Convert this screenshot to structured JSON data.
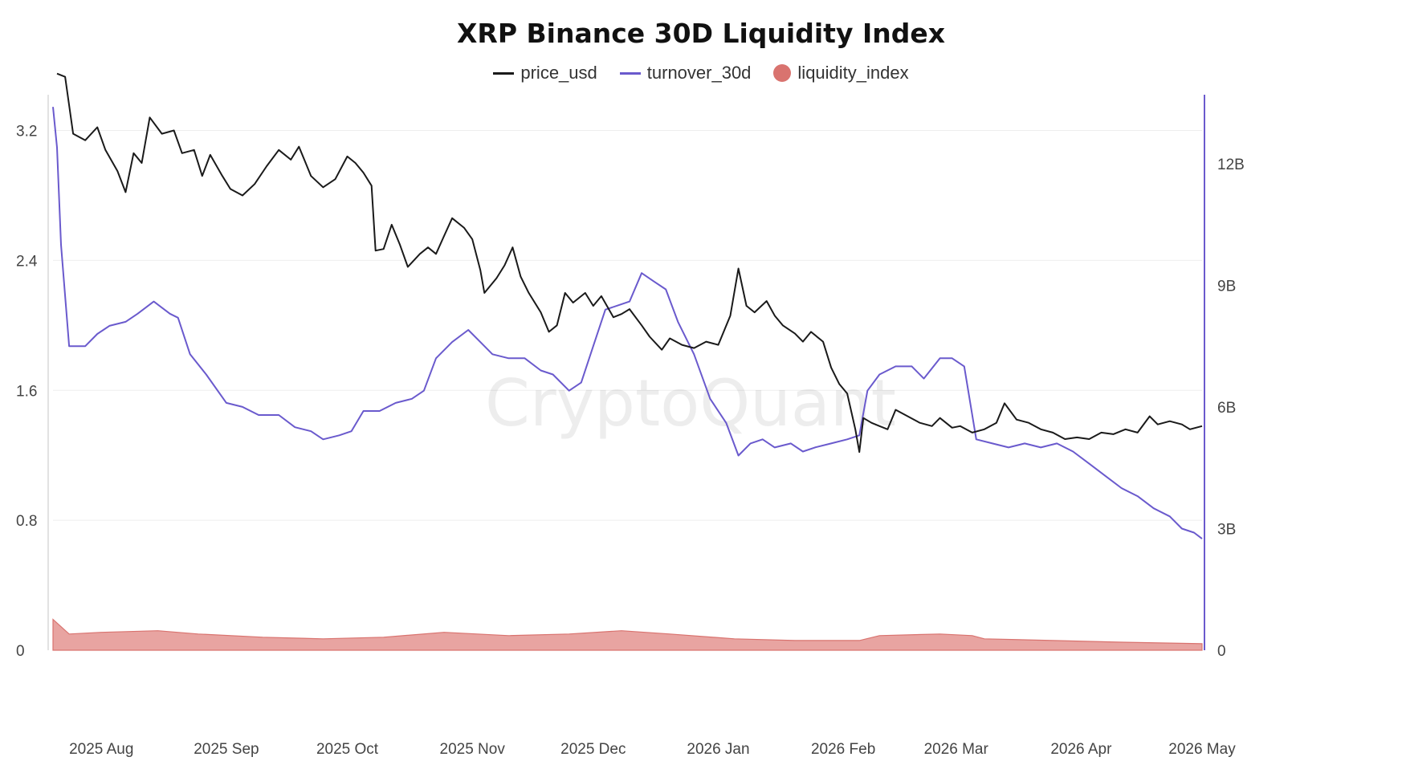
{
  "chart_data": {
    "type": "line",
    "title": "XRP Binance 30D Liquidity Index",
    "watermark": "CryptoQuant",
    "legend_position": "top-center",
    "grid": true,
    "x": {
      "start": "2025-07-20",
      "end": "2026-05-01",
      "tick_labels": [
        "2025 Aug",
        "2025 Sep",
        "2025 Oct",
        "2025 Nov",
        "2025 Dec",
        "2026 Jan",
        "2026 Feb",
        "2026 Mar",
        "2026 Apr",
        "2026 May"
      ],
      "tick_dates": [
        "2025-08-01",
        "2025-09-01",
        "2025-10-01",
        "2025-11-01",
        "2025-12-01",
        "2026-01-01",
        "2026-02-01",
        "2026-03-01",
        "2026-04-01",
        "2026-05-01"
      ]
    },
    "y_left": {
      "min": 0,
      "max": 3.42,
      "ticks": [
        0,
        0.8,
        1.6,
        2.4,
        3.2
      ],
      "tick_labels": [
        "0",
        "0.8",
        "1.6",
        "2.4",
        "3.2"
      ]
    },
    "y_right": {
      "min": 0,
      "max": 13700000000,
      "ticks": [
        0,
        3000000000,
        6000000000,
        9000000000,
        12000000000
      ],
      "tick_labels": [
        "0",
        "3B",
        "6B",
        "9B",
        "12B"
      ]
    },
    "series": [
      {
        "name": "price_usd",
        "axis": "left",
        "color": "#1a1a1a",
        "points": [
          [
            "2025-07-21",
            3.55
          ],
          [
            "2025-07-23",
            3.53
          ],
          [
            "2025-07-25",
            3.18
          ],
          [
            "2025-07-28",
            3.14
          ],
          [
            "2025-07-31",
            3.22
          ],
          [
            "2025-08-02",
            3.08
          ],
          [
            "2025-08-05",
            2.95
          ],
          [
            "2025-08-07",
            2.82
          ],
          [
            "2025-08-09",
            3.06
          ],
          [
            "2025-08-11",
            3.0
          ],
          [
            "2025-08-13",
            3.28
          ],
          [
            "2025-08-16",
            3.18
          ],
          [
            "2025-08-19",
            3.2
          ],
          [
            "2025-08-21",
            3.06
          ],
          [
            "2025-08-24",
            3.08
          ],
          [
            "2025-08-26",
            2.92
          ],
          [
            "2025-08-28",
            3.05
          ],
          [
            "2025-08-31",
            2.92
          ],
          [
            "2025-09-02",
            2.84
          ],
          [
            "2025-09-05",
            2.8
          ],
          [
            "2025-09-08",
            2.87
          ],
          [
            "2025-09-11",
            2.98
          ],
          [
            "2025-09-14",
            3.08
          ],
          [
            "2025-09-17",
            3.02
          ],
          [
            "2025-09-19",
            3.1
          ],
          [
            "2025-09-22",
            2.92
          ],
          [
            "2025-09-25",
            2.85
          ],
          [
            "2025-09-28",
            2.9
          ],
          [
            "2025-10-01",
            3.04
          ],
          [
            "2025-10-03",
            3.0
          ],
          [
            "2025-10-05",
            2.94
          ],
          [
            "2025-10-07",
            2.86
          ],
          [
            "2025-10-08",
            2.46
          ],
          [
            "2025-10-10",
            2.47
          ],
          [
            "2025-10-12",
            2.62
          ],
          [
            "2025-10-14",
            2.5
          ],
          [
            "2025-10-16",
            2.36
          ],
          [
            "2025-10-19",
            2.44
          ],
          [
            "2025-10-21",
            2.48
          ],
          [
            "2025-10-23",
            2.44
          ],
          [
            "2025-10-25",
            2.55
          ],
          [
            "2025-10-27",
            2.66
          ],
          [
            "2025-10-30",
            2.6
          ],
          [
            "2025-11-01",
            2.53
          ],
          [
            "2025-11-03",
            2.34
          ],
          [
            "2025-11-04",
            2.2
          ],
          [
            "2025-11-07",
            2.29
          ],
          [
            "2025-11-09",
            2.37
          ],
          [
            "2025-11-11",
            2.48
          ],
          [
            "2025-11-13",
            2.3
          ],
          [
            "2025-11-15",
            2.2
          ],
          [
            "2025-11-18",
            2.08
          ],
          [
            "2025-11-20",
            1.96
          ],
          [
            "2025-11-22",
            2.0
          ],
          [
            "2025-11-24",
            2.2
          ],
          [
            "2025-11-26",
            2.14
          ],
          [
            "2025-11-29",
            2.2
          ],
          [
            "2025-12-01",
            2.12
          ],
          [
            "2025-12-03",
            2.18
          ],
          [
            "2025-12-06",
            2.05
          ],
          [
            "2025-12-08",
            2.07
          ],
          [
            "2025-12-10",
            2.1
          ],
          [
            "2025-12-13",
            2.0
          ],
          [
            "2025-12-15",
            1.93
          ],
          [
            "2025-12-18",
            1.85
          ],
          [
            "2025-12-20",
            1.92
          ],
          [
            "2025-12-23",
            1.88
          ],
          [
            "2025-12-26",
            1.86
          ],
          [
            "2025-12-29",
            1.9
          ],
          [
            "2026-01-01",
            1.88
          ],
          [
            "2026-01-04",
            2.06
          ],
          [
            "2026-01-06",
            2.35
          ],
          [
            "2026-01-08",
            2.12
          ],
          [
            "2026-01-10",
            2.08
          ],
          [
            "2026-01-13",
            2.15
          ],
          [
            "2026-01-15",
            2.06
          ],
          [
            "2026-01-17",
            2.0
          ],
          [
            "2026-01-20",
            1.95
          ],
          [
            "2026-01-22",
            1.9
          ],
          [
            "2026-01-24",
            1.96
          ],
          [
            "2026-01-27",
            1.9
          ],
          [
            "2026-01-29",
            1.74
          ],
          [
            "2026-01-31",
            1.64
          ],
          [
            "2026-02-02",
            1.58
          ],
          [
            "2026-02-04",
            1.36
          ],
          [
            "2026-02-05",
            1.22
          ],
          [
            "2026-02-06",
            1.43
          ],
          [
            "2026-02-08",
            1.4
          ],
          [
            "2026-02-10",
            1.38
          ],
          [
            "2026-02-12",
            1.36
          ],
          [
            "2026-02-14",
            1.48
          ],
          [
            "2026-02-17",
            1.44
          ],
          [
            "2026-02-20",
            1.4
          ],
          [
            "2026-02-23",
            1.38
          ],
          [
            "2026-02-25",
            1.43
          ],
          [
            "2026-02-28",
            1.37
          ],
          [
            "2026-03-02",
            1.38
          ],
          [
            "2026-03-05",
            1.34
          ],
          [
            "2026-03-08",
            1.36
          ],
          [
            "2026-03-11",
            1.4
          ],
          [
            "2026-03-13",
            1.52
          ],
          [
            "2026-03-16",
            1.42
          ],
          [
            "2026-03-19",
            1.4
          ],
          [
            "2026-03-22",
            1.36
          ],
          [
            "2026-03-25",
            1.34
          ],
          [
            "2026-03-28",
            1.3
          ],
          [
            "2026-03-31",
            1.31
          ],
          [
            "2026-04-03",
            1.3
          ],
          [
            "2026-04-06",
            1.34
          ],
          [
            "2026-04-09",
            1.33
          ],
          [
            "2026-04-12",
            1.36
          ],
          [
            "2026-04-15",
            1.34
          ],
          [
            "2026-04-18",
            1.44
          ],
          [
            "2026-04-20",
            1.39
          ],
          [
            "2026-04-23",
            1.41
          ],
          [
            "2026-04-26",
            1.39
          ],
          [
            "2026-04-28",
            1.36
          ],
          [
            "2026-05-01",
            1.38
          ]
        ]
      },
      {
        "name": "turnover_30d",
        "axis": "right",
        "color": "#6a5acd",
        "points": [
          [
            "2025-07-20",
            13400000000.0
          ],
          [
            "2025-07-21",
            12400000000.0
          ],
          [
            "2025-07-22",
            10000000000.0
          ],
          [
            "2025-07-24",
            7500000000.0
          ],
          [
            "2025-07-28",
            7500000000.0
          ],
          [
            "2025-07-31",
            7800000000.0
          ],
          [
            "2025-08-03",
            8000000000.0
          ],
          [
            "2025-08-07",
            8100000000.0
          ],
          [
            "2025-08-10",
            8300000000.0
          ],
          [
            "2025-08-14",
            8600000000.0
          ],
          [
            "2025-08-18",
            8300000000.0
          ],
          [
            "2025-08-20",
            8200000000.0
          ],
          [
            "2025-08-23",
            7300000000.0
          ],
          [
            "2025-08-27",
            6800000000.0
          ],
          [
            "2025-09-01",
            6100000000.0
          ],
          [
            "2025-09-05",
            6000000000.0
          ],
          [
            "2025-09-09",
            5800000000.0
          ],
          [
            "2025-09-14",
            5800000000.0
          ],
          [
            "2025-09-18",
            5500000000.0
          ],
          [
            "2025-09-22",
            5400000000.0
          ],
          [
            "2025-09-25",
            5200000000.0
          ],
          [
            "2025-09-29",
            5300000000.0
          ],
          [
            "2025-10-02",
            5400000000.0
          ],
          [
            "2025-10-05",
            5900000000.0
          ],
          [
            "2025-10-09",
            5900000000.0
          ],
          [
            "2025-10-13",
            6100000000.0
          ],
          [
            "2025-10-17",
            6200000000.0
          ],
          [
            "2025-10-20",
            6400000000.0
          ],
          [
            "2025-10-23",
            7200000000.0
          ],
          [
            "2025-10-27",
            7600000000.0
          ],
          [
            "2025-10-31",
            7900000000.0
          ],
          [
            "2025-11-03",
            7600000000.0
          ],
          [
            "2025-11-06",
            7300000000.0
          ],
          [
            "2025-11-10",
            7200000000.0
          ],
          [
            "2025-11-14",
            7200000000.0
          ],
          [
            "2025-11-18",
            6900000000.0
          ],
          [
            "2025-11-21",
            6800000000.0
          ],
          [
            "2025-11-25",
            6400000000.0
          ],
          [
            "2025-11-28",
            6600000000.0
          ],
          [
            "2025-12-01",
            7500000000.0
          ],
          [
            "2025-12-04",
            8400000000.0
          ],
          [
            "2025-12-07",
            8500000000.0
          ],
          [
            "2025-12-10",
            8600000000.0
          ],
          [
            "2025-12-13",
            9300000000.0
          ],
          [
            "2025-12-16",
            9100000000.0
          ],
          [
            "2025-12-19",
            8900000000.0
          ],
          [
            "2025-12-22",
            8100000000.0
          ],
          [
            "2025-12-26",
            7300000000.0
          ],
          [
            "2025-12-30",
            6200000000.0
          ],
          [
            "2026-01-03",
            5600000000.0
          ],
          [
            "2026-01-06",
            4800000000.0
          ],
          [
            "2026-01-09",
            5100000000.0
          ],
          [
            "2026-01-12",
            5200000000.0
          ],
          [
            "2026-01-15",
            5000000000.0
          ],
          [
            "2026-01-19",
            5100000000.0
          ],
          [
            "2026-01-22",
            4900000000.0
          ],
          [
            "2026-01-25",
            5000000000.0
          ],
          [
            "2026-01-29",
            5100000000.0
          ],
          [
            "2026-02-02",
            5200000000.0
          ],
          [
            "2026-02-05",
            5300000000.0
          ],
          [
            "2026-02-07",
            6400000000.0
          ],
          [
            "2026-02-10",
            6800000000.0
          ],
          [
            "2026-02-14",
            7000000000.0
          ],
          [
            "2026-02-18",
            7000000000.0
          ],
          [
            "2026-02-21",
            6700000000.0
          ],
          [
            "2026-02-25",
            7200000000.0
          ],
          [
            "2026-02-28",
            7200000000.0
          ],
          [
            "2026-03-03",
            7000000000.0
          ],
          [
            "2026-03-06",
            5200000000.0
          ],
          [
            "2026-03-10",
            5100000000.0
          ],
          [
            "2026-03-14",
            5000000000.0
          ],
          [
            "2026-03-18",
            5100000000.0
          ],
          [
            "2026-03-22",
            5000000000.0
          ],
          [
            "2026-03-26",
            5100000000.0
          ],
          [
            "2026-03-30",
            4900000000.0
          ],
          [
            "2026-04-03",
            4600000000.0
          ],
          [
            "2026-04-07",
            4300000000.0
          ],
          [
            "2026-04-11",
            4000000000.0
          ],
          [
            "2026-04-15",
            3800000000.0
          ],
          [
            "2026-04-19",
            3500000000.0
          ],
          [
            "2026-04-23",
            3300000000.0
          ],
          [
            "2026-04-26",
            3000000000.0
          ],
          [
            "2026-04-29",
            2900000000.0
          ],
          [
            "2026-05-01",
            2750000000.0
          ]
        ]
      },
      {
        "name": "liquidity_index",
        "axis": "left",
        "color": "#d9736f",
        "fill": "#e59a97",
        "points": [
          [
            "2025-07-20",
            0.19
          ],
          [
            "2025-07-24",
            0.1
          ],
          [
            "2025-08-01",
            0.11
          ],
          [
            "2025-08-15",
            0.12
          ],
          [
            "2025-08-25",
            0.1
          ],
          [
            "2025-09-10",
            0.08
          ],
          [
            "2025-09-25",
            0.07
          ],
          [
            "2025-10-10",
            0.08
          ],
          [
            "2025-10-25",
            0.11
          ],
          [
            "2025-11-10",
            0.09
          ],
          [
            "2025-11-25",
            0.1
          ],
          [
            "2025-12-08",
            0.12
          ],
          [
            "2025-12-20",
            0.1
          ],
          [
            "2026-01-05",
            0.07
          ],
          [
            "2026-01-20",
            0.06
          ],
          [
            "2026-02-05",
            0.06
          ],
          [
            "2026-02-10",
            0.09
          ],
          [
            "2026-02-25",
            0.1
          ],
          [
            "2026-03-05",
            0.09
          ],
          [
            "2026-03-08",
            0.07
          ],
          [
            "2026-03-25",
            0.06
          ],
          [
            "2026-04-10",
            0.05
          ],
          [
            "2026-05-01",
            0.04
          ]
        ]
      }
    ]
  }
}
